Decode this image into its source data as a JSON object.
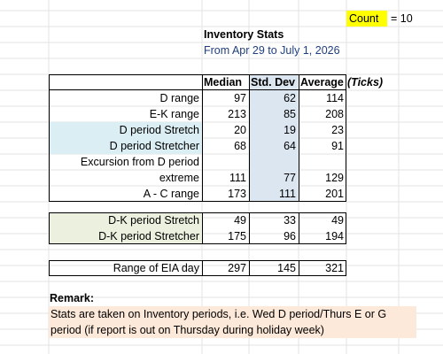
{
  "header": {
    "count_label": "Count",
    "count_text": "= 10",
    "title": "Inventory Stats",
    "subtitle": "From Apr 29 to July 1, 2026"
  },
  "table": {
    "columns": [
      "Median",
      "Std. Dev",
      "Average"
    ],
    "units": "(Ticks)",
    "sections": [
      {
        "rows": [
          {
            "label": "D range",
            "values": [
              "97",
              "62",
              "114"
            ]
          },
          {
            "label": "E-K range",
            "values": [
              "213",
              "85",
              "208"
            ]
          },
          {
            "label": "D period Stretch",
            "values": [
              "20",
              "19",
              "23"
            ]
          },
          {
            "label": "D period Stretcher",
            "values": [
              "68",
              "64",
              "91"
            ]
          },
          {
            "label": "Excursion from D period"
          },
          {
            "label": "extreme",
            "values": [
              "111",
              "77",
              "129"
            ]
          },
          {
            "label": "A - C range",
            "values": [
              "173",
              "111",
              "201"
            ]
          }
        ]
      },
      {
        "rows": [
          {
            "label": "D-K period Stretch",
            "values": [
              "49",
              "33",
              "49"
            ]
          },
          {
            "label": "D-K period Stretcher",
            "values": [
              "175",
              "96",
              "194"
            ]
          }
        ]
      },
      {
        "rows": [
          {
            "label": "Range of EIA day",
            "values": [
              "297",
              "145",
              "321"
            ]
          }
        ]
      }
    ]
  },
  "remark": {
    "title": "Remark:",
    "lines": [
      "Stats are taken on Inventory periods, i.e. Wed D period/Thurs E or G",
      "period (if report is out on Thursday during holiday week)"
    ]
  }
}
